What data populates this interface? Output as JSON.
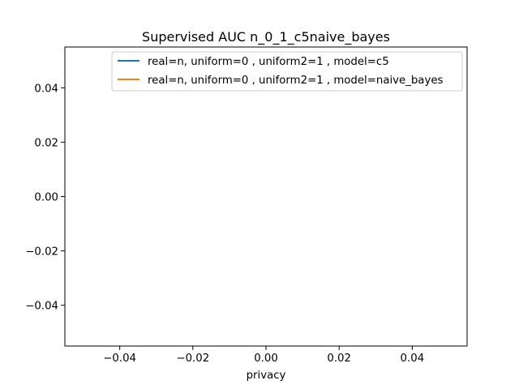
{
  "chart_data": {
    "type": "line",
    "title": "Supervised AUC n_0_1_c5naive_bayes",
    "xlabel": "privacy",
    "ylabel": "",
    "xlim": [
      -0.055,
      0.055
    ],
    "ylim": [
      -0.055,
      0.055
    ],
    "x_ticks": [
      -0.04,
      -0.02,
      0.0,
      0.02,
      0.04
    ],
    "x_tick_labels": [
      "−0.04",
      "−0.02",
      "0.00",
      "0.02",
      "0.04"
    ],
    "y_ticks": [
      0.04,
      0.02,
      0.0,
      -0.02,
      -0.04
    ],
    "y_tick_labels": [
      "0.04",
      "0.02",
      "0.00",
      "−0.02",
      "−0.04"
    ],
    "grid": false,
    "legend_position": "top-right",
    "series": [
      {
        "name": "real=n, uniform=0 , uniform2=1 , model=c5",
        "color": "#1f77b4",
        "x": [],
        "y": []
      },
      {
        "name": "real=n, uniform=0 , uniform2=1 , model=naive_bayes",
        "color": "#ff7f0e",
        "x": [],
        "y": []
      }
    ]
  }
}
